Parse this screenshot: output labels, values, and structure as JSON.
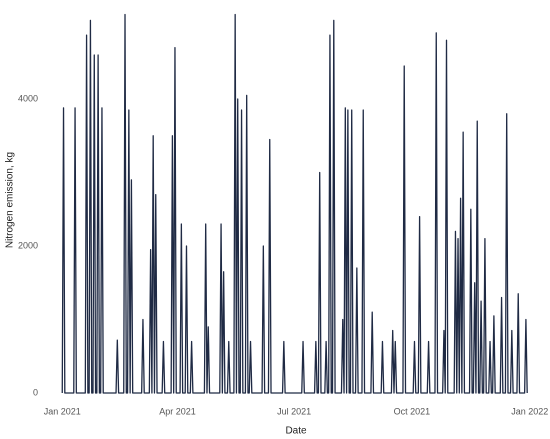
{
  "chart_data": {
    "type": "line",
    "xlabel": "Date",
    "ylabel": "Nitrogen emission, kg",
    "x": [
      0,
      1,
      2,
      9,
      10,
      11,
      18,
      19,
      20,
      21,
      22,
      23,
      24,
      25,
      26,
      27,
      28,
      29,
      30,
      31,
      32,
      42,
      43,
      44,
      48,
      49,
      50,
      51,
      52,
      53,
      54,
      55,
      62,
      63,
      64,
      68,
      69,
      70,
      71,
      72,
      73,
      74,
      78,
      79,
      80,
      85,
      86,
      87,
      88,
      89,
      92,
      93,
      94,
      96,
      97,
      98,
      100,
      101,
      102,
      111,
      112,
      113,
      114,
      115,
      123,
      124,
      125,
      126,
      127,
      129,
      130,
      131,
      134,
      135,
      136,
      137,
      138,
      139,
      140,
      141,
      143,
      144,
      145,
      146,
      147,
      148,
      156,
      157,
      158,
      161,
      162,
      163,
      172,
      173,
      174,
      187,
      188,
      189,
      197,
      198,
      199,
      200,
      201,
      202,
      205,
      206,
      207,
      208,
      209,
      210,
      211,
      212,
      213,
      218,
      219,
      220,
      221,
      222,
      223,
      224,
      225,
      226,
      227,
      229,
      230,
      231,
      234,
      235,
      236,
      241,
      242,
      243,
      249,
      250,
      251,
      257,
      258,
      259,
      260,
      261,
      266,
      267,
      268,
      274,
      275,
      276,
      278,
      279,
      280,
      285,
      286,
      287,
      291,
      292,
      293,
      297,
      298,
      299,
      300,
      301,
      306,
      307,
      308,
      309,
      310,
      311,
      312,
      313,
      314,
      318,
      319,
      320,
      321,
      322,
      323,
      324,
      325,
      326,
      327,
      328,
      329,
      330,
      331,
      333,
      334,
      335,
      336,
      337,
      338,
      342,
      343,
      344,
      346,
      347,
      348,
      350,
      351,
      352,
      355,
      356,
      357,
      361,
      362,
      363
    ],
    "values": [
      0,
      3880,
      0,
      0,
      3880,
      0,
      0,
      4870,
      0,
      0,
      5070,
      0,
      0,
      4600,
      0,
      0,
      4600,
      0,
      0,
      3880,
      0,
      0,
      720,
      0,
      0,
      5150,
      0,
      0,
      3850,
      0,
      2900,
      0,
      0,
      1000,
      0,
      0,
      1950,
      0,
      3500,
      0,
      2700,
      0,
      0,
      700,
      0,
      0,
      3500,
      0,
      4700,
      0,
      0,
      2300,
      0,
      0,
      2000,
      0,
      0,
      700,
      0,
      0,
      2300,
      0,
      900,
      0,
      0,
      2300,
      0,
      1650,
      0,
      0,
      700,
      0,
      0,
      5150,
      0,
      4000,
      0,
      0,
      3850,
      0,
      0,
      4050,
      0,
      0,
      700,
      0,
      0,
      2000,
      0,
      0,
      3450,
      0,
      0,
      700,
      0,
      0,
      700,
      0,
      0,
      700,
      0,
      0,
      3000,
      0,
      0,
      700,
      0,
      0,
      4870,
      0,
      0,
      5070,
      0,
      0,
      1000,
      0,
      3880,
      0,
      3850,
      0,
      0,
      3850,
      0,
      0,
      1700,
      0,
      0,
      3850,
      0,
      0,
      1100,
      0,
      0,
      700,
      0,
      0,
      850,
      0,
      700,
      0,
      0,
      4450,
      0,
      0,
      700,
      0,
      0,
      2400,
      0,
      0,
      700,
      0,
      0,
      4900,
      0,
      0,
      850,
      0,
      4800,
      0,
      0,
      2200,
      0,
      2100,
      0,
      2650,
      0,
      3550,
      0,
      0,
      2500,
      0,
      0,
      1500,
      0,
      3700,
      0,
      0,
      1250,
      0,
      0,
      2100,
      0,
      0,
      700,
      0,
      0,
      1050,
      0,
      0,
      1300,
      0,
      0,
      3800,
      0,
      0,
      850,
      0,
      0,
      1350,
      0,
      0,
      1000,
      0
    ],
    "color": "#1f2a44",
    "xlim": [
      -8,
      373
    ],
    "xticks": [
      {
        "value": 0,
        "label": "Jan 2021"
      },
      {
        "value": 90,
        "label": "Apr 2021"
      },
      {
        "value": 181,
        "label": "Jul 2021"
      },
      {
        "value": 273,
        "label": "Oct 2021"
      },
      {
        "value": 365,
        "label": "Jan 2022"
      }
    ],
    "ylim": [
      -68,
      5280
    ],
    "yticks": [
      0,
      2000,
      4000
    ]
  }
}
